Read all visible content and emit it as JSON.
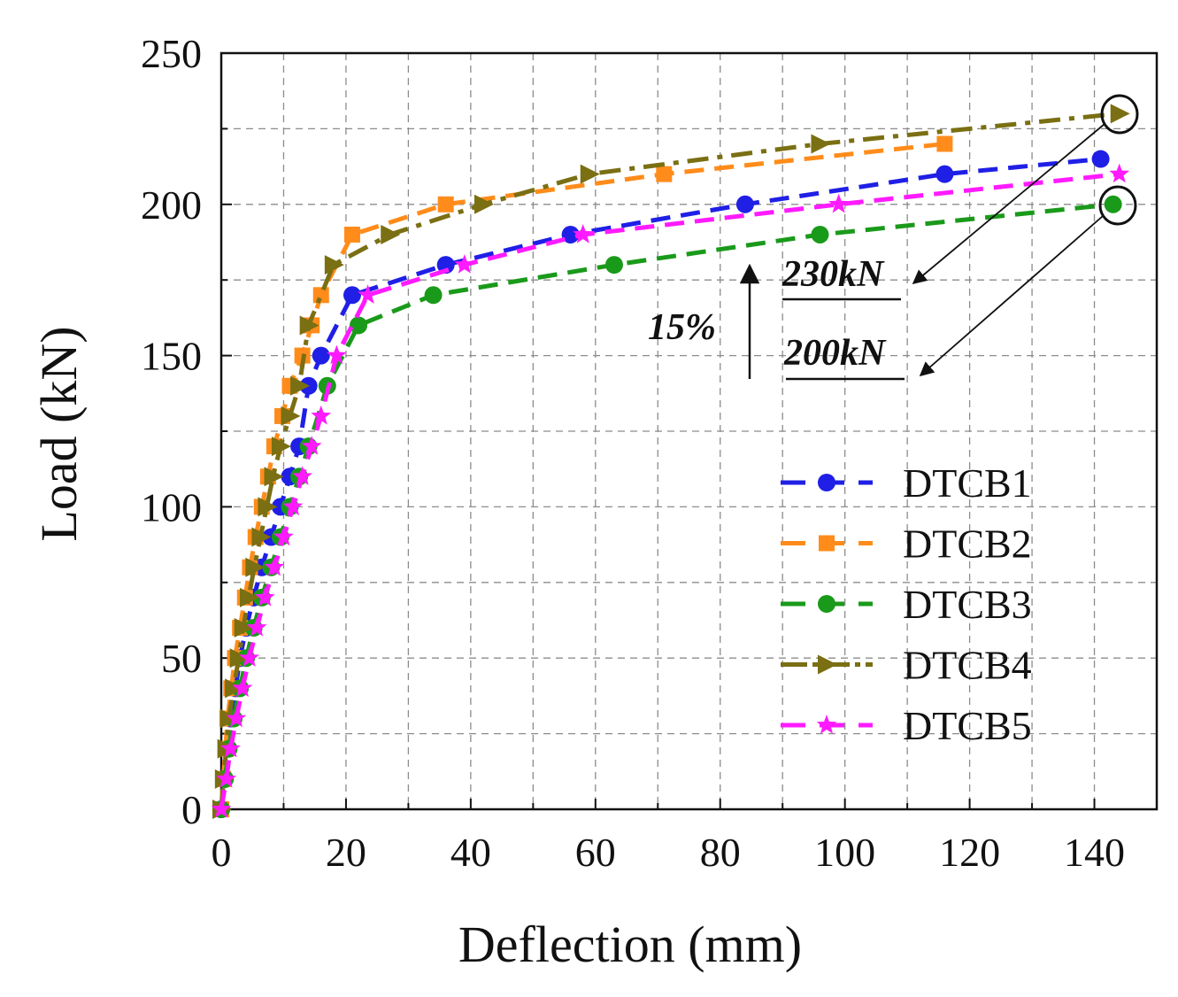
{
  "chart_data": {
    "type": "line",
    "xlabel": "Deflection (mm)",
    "ylabel": "Load (kN)",
    "xlim": [
      0,
      150
    ],
    "ylim": [
      0,
      250
    ],
    "xticks": [
      0,
      20,
      40,
      60,
      80,
      100,
      120,
      140
    ],
    "yticks": [
      0,
      50,
      100,
      150,
      200,
      250
    ],
    "grid": true,
    "legend_position": "lower-right",
    "series": [
      {
        "name": "DTCB1",
        "color": "#1f1fe6",
        "marker": "circle",
        "dash": "dashed",
        "x": [
          0,
          0.5,
          1,
          1.5,
          2.3,
          3,
          4,
          5.2,
          6.5,
          8,
          9.5,
          11,
          12.5,
          14,
          16,
          21,
          36,
          56,
          84,
          116,
          141
        ],
        "y": [
          0,
          10,
          20,
          30,
          40,
          50,
          60,
          70,
          80,
          90,
          100,
          110,
          120,
          140,
          150,
          170,
          180,
          190,
          200,
          210,
          215
        ]
      },
      {
        "name": "DTCB2",
        "color": "#ff8c1a",
        "marker": "square",
        "dash": "dashed",
        "x": [
          0,
          0.3,
          0.7,
          1,
          1.6,
          2.2,
          3,
          3.8,
          4.6,
          5.5,
          6.5,
          7.5,
          8.5,
          9.8,
          11,
          13,
          14.5,
          16,
          21,
          36,
          71,
          116
        ],
        "y": [
          0,
          10,
          20,
          30,
          40,
          50,
          60,
          70,
          80,
          90,
          100,
          110,
          120,
          130,
          140,
          150,
          160,
          170,
          190,
          200,
          210,
          220
        ]
      },
      {
        "name": "DTCB3",
        "color": "#1a9a1a",
        "marker": "circle",
        "dash": "dashed",
        "x": [
          0,
          0.6,
          1.2,
          2,
          3,
          4,
          5.2,
          6.5,
          8,
          9.5,
          11,
          12.5,
          14,
          17,
          22,
          34,
          63,
          96,
          143
        ],
        "y": [
          0,
          10,
          20,
          30,
          40,
          50,
          60,
          70,
          80,
          90,
          100,
          110,
          120,
          140,
          160,
          170,
          180,
          190,
          200
        ]
      },
      {
        "name": "DTCB4",
        "color": "#7a6f12",
        "marker": "triangle-right",
        "dash": "dashdot",
        "x": [
          0,
          0.4,
          0.8,
          1.2,
          2,
          2.8,
          3.5,
          4.4,
          5.3,
          6.3,
          7.3,
          8.3,
          9.5,
          11,
          12.5,
          14,
          18,
          27,
          42,
          59,
          96,
          144
        ],
        "y": [
          0,
          10,
          20,
          30,
          40,
          50,
          60,
          70,
          80,
          90,
          100,
          110,
          120,
          130,
          140,
          160,
          180,
          190,
          200,
          210,
          220,
          230
        ]
      },
      {
        "name": "DTCB5",
        "color": "#ff1aff",
        "marker": "star",
        "dash": "dashed",
        "x": [
          0,
          0.8,
          1.5,
          2.4,
          3.4,
          4.5,
          5.7,
          7,
          8.5,
          10,
          11.5,
          13,
          14.5,
          16,
          18.5,
          23.5,
          39,
          58,
          99,
          144
        ],
        "y": [
          0,
          10,
          20,
          30,
          40,
          50,
          60,
          70,
          80,
          90,
          100,
          110,
          120,
          130,
          150,
          170,
          180,
          190,
          200,
          210
        ]
      }
    ],
    "annotations": {
      "upper_value": "230kN",
      "lower_value": "200kN",
      "increase": "15%"
    }
  }
}
